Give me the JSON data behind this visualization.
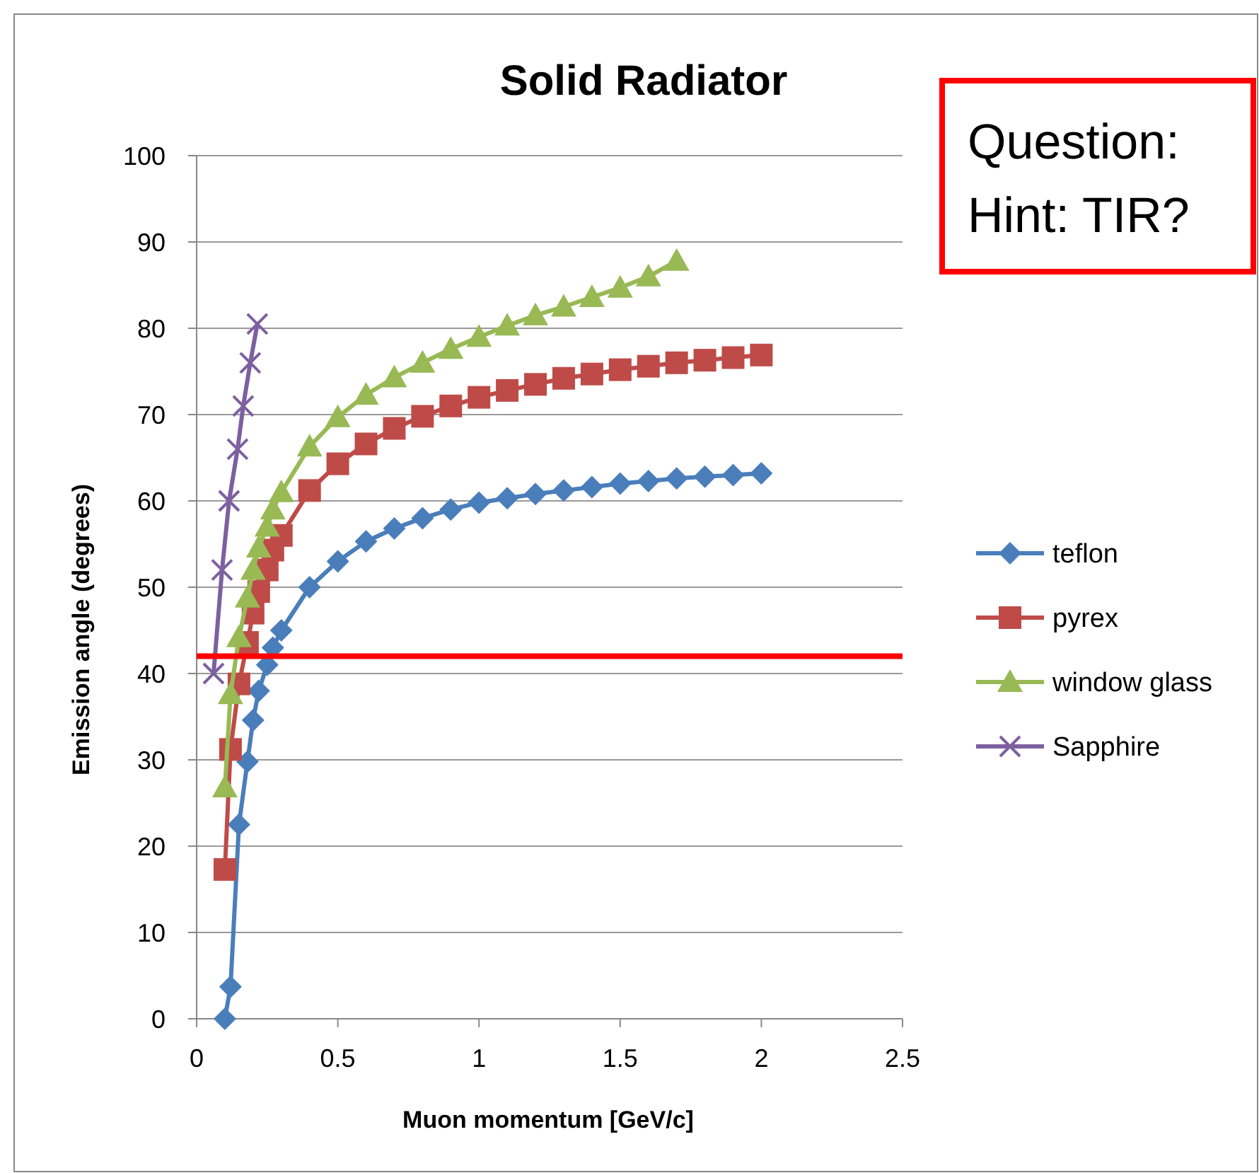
{
  "chart_data": {
    "type": "line",
    "title": "Solid Radiator",
    "xlabel": "Muon momentum [GeV/c]",
    "ylabel": "Emission angle (degrees)",
    "xlim": [
      0,
      2.5
    ],
    "xticks": [
      0,
      0.5,
      1,
      1.5,
      2,
      2.5
    ],
    "ylim": [
      0,
      100
    ],
    "yticks": [
      0,
      10,
      20,
      30,
      40,
      50,
      60,
      70,
      80,
      90,
      100
    ],
    "grid": "y",
    "legend": "right",
    "series": [
      {
        "name": "teflon",
        "color": "#4a7ebb",
        "marker": "diamond",
        "x": [
          0.1,
          0.12,
          0.15,
          0.18,
          0.2,
          0.22,
          0.25,
          0.27,
          0.3,
          0.4,
          0.5,
          0.6,
          0.7,
          0.8,
          0.9,
          1.0,
          1.1,
          1.2,
          1.3,
          1.4,
          1.5,
          1.6,
          1.7,
          1.8,
          1.9,
          2.0
        ],
        "values": [
          0,
          3.7,
          22.5,
          29.8,
          34.6,
          38,
          41,
          43,
          45,
          50,
          53,
          55.3,
          56.8,
          58,
          59,
          59.8,
          60.3,
          60.8,
          61.2,
          61.6,
          62,
          62.3,
          62.6,
          62.8,
          63,
          63.2
        ]
      },
      {
        "name": "pyrex",
        "color": "#be4b48",
        "marker": "square",
        "x": [
          0.1,
          0.12,
          0.15,
          0.18,
          0.2,
          0.22,
          0.25,
          0.27,
          0.3,
          0.4,
          0.5,
          0.6,
          0.7,
          0.8,
          0.9,
          1.0,
          1.1,
          1.2,
          1.3,
          1.4,
          1.5,
          1.6,
          1.7,
          1.8,
          1.9,
          2.0
        ],
        "values": [
          17.3,
          31.2,
          38.8,
          43.6,
          47,
          49.5,
          52,
          54.3,
          56,
          61.2,
          64.3,
          66.6,
          68.4,
          69.8,
          71,
          72,
          72.8,
          73.5,
          74.2,
          74.7,
          75.2,
          75.6,
          76,
          76.3,
          76.6,
          76.9
        ]
      },
      {
        "name": "window glass",
        "color": "#98b954",
        "marker": "triangle",
        "x": [
          0.1,
          0.12,
          0.15,
          0.18,
          0.2,
          0.22,
          0.25,
          0.27,
          0.3,
          0.4,
          0.5,
          0.6,
          0.7,
          0.8,
          0.9,
          1.0,
          1.1,
          1.2,
          1.3,
          1.4,
          1.5,
          1.6,
          1.7
        ],
        "values": [
          26.8,
          37.6,
          44.2,
          48.8,
          52,
          54.6,
          57,
          59,
          61,
          66.3,
          69.7,
          72.3,
          74.3,
          76,
          77.6,
          79,
          80.3,
          81.5,
          82.5,
          83.6,
          84.7,
          86,
          87.8
        ]
      },
      {
        "name": "Sapphire",
        "color": "#7d60a0",
        "marker": "cross",
        "x": [
          0.06,
          0.09,
          0.115,
          0.145,
          0.165,
          0.19,
          0.215
        ],
        "values": [
          40,
          52,
          60,
          66,
          71,
          76,
          80.5
        ]
      }
    ],
    "ref_lines": [
      {
        "axis": "y",
        "value": 42,
        "color": "#ff0000"
      }
    ],
    "annotations": [
      "Question:",
      "Hint:  TIR?"
    ]
  }
}
